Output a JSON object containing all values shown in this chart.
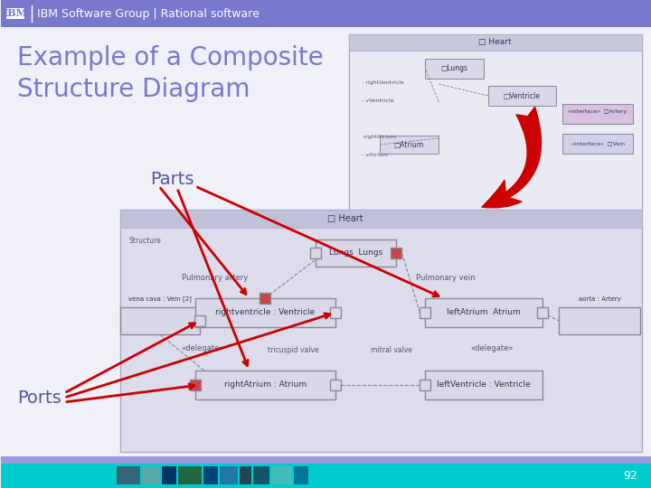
{
  "title_text": "Example of a Composite\nStructure Diagram",
  "title_color": "#7878cc",
  "header_bg": "#7878cc",
  "header_text": "IBM Software Group | Rational software",
  "header_text_color": "#ffffff",
  "footer_bg": "#00cccc",
  "footer_bar_color": "#9999dd",
  "footer_page_num": "92",
  "main_bg": "#f0f0f8",
  "parts_label": "Parts",
  "ports_label": "Ports",
  "label_color": "#555599",
  "arrow_color": "#cc0000",
  "diagram_bg": "#dcdcec",
  "diagram_border": "#aaaacc",
  "box_face": "#d8d8e8",
  "box_edge": "#888899"
}
